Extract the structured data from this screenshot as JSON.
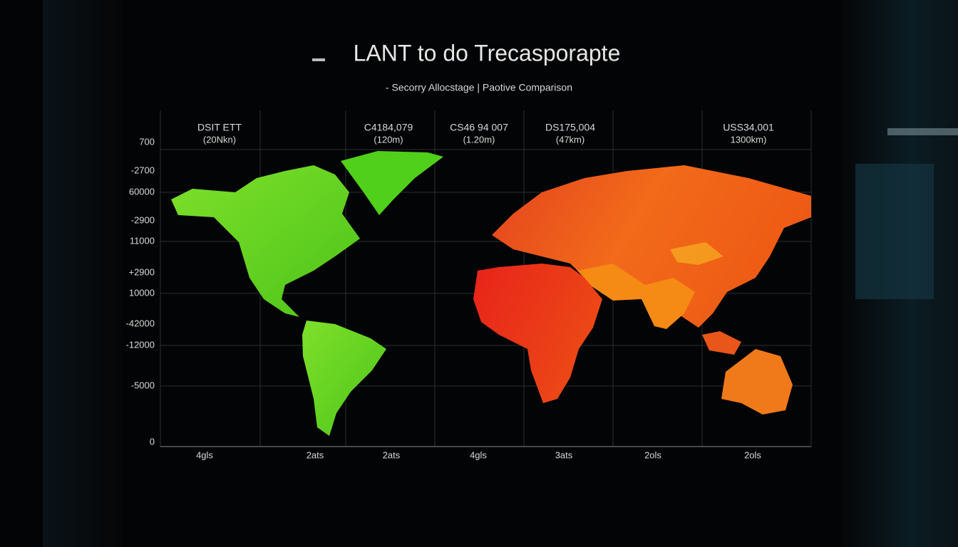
{
  "title": "LANT to do Trecasporapte",
  "subtitle": "- Secorry Allocstage | Paotive Comparison",
  "y_labels": [
    "700",
    "-2700",
    "60000",
    "-2900",
    "11000",
    "+2900",
    "10000",
    "-42000",
    "-12000",
    "-5000",
    "0"
  ],
  "x_labels": [
    "4gls",
    "2ats",
    "2ats",
    "4gls",
    "3ats",
    "2ols",
    "2ols"
  ],
  "annotations": [
    {
      "value": "DSIT ETT",
      "unit": "(20Nkn)"
    },
    {
      "value": "C4184,079",
      "unit": "(120m)"
    },
    {
      "value": "CS46 94 007",
      "unit": "(1.20m)"
    },
    {
      "value": "DS175,004",
      "unit": "(47km)"
    },
    {
      "value": "USS34,001",
      "unit": "1300km)"
    }
  ]
}
